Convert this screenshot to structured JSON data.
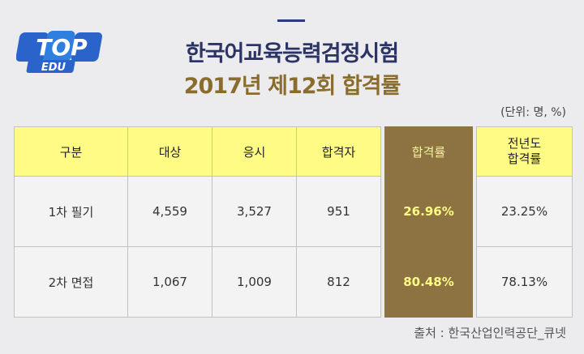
{
  "logo": {
    "line1": "TOP",
    "line2": "EDU"
  },
  "title": {
    "line1": "한국어교육능력검정시험",
    "line2": "2017년 제12회 합격률"
  },
  "unit_note": "(단위: 명, %)",
  "table": {
    "headers": [
      "구분",
      "대상",
      "응시",
      "합격자",
      "합격률",
      "전년도\n합격률"
    ],
    "rows": [
      [
        "1차 필기",
        "4,559",
        "3,527",
        "951",
        "26.96%",
        "23.25%"
      ],
      [
        "2차 면접",
        "1,067",
        "1,009",
        "812",
        "80.48%",
        "78.13%"
      ]
    ]
  },
  "source": "출처 : 한국산업인력공단_큐넷",
  "colors": {
    "title_navy": "#2c3466",
    "title_gold": "#8a6c2c",
    "header_yellow": "#fffb84",
    "highlight_brown": "#8d7242",
    "logo_blue": "#2a63c9"
  }
}
